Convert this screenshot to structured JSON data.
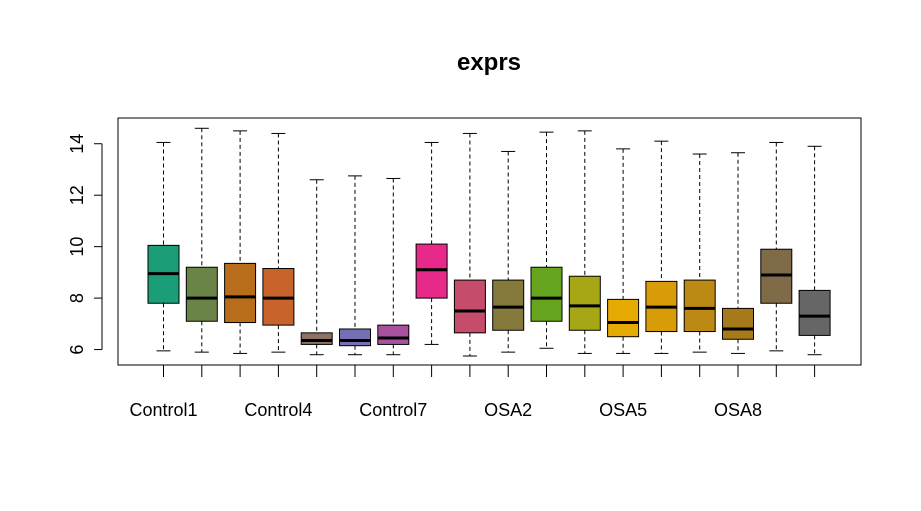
{
  "chart_data": {
    "type": "box",
    "title": "exprs",
    "xlabel": "",
    "ylabel": "",
    "ylim": [
      5.4,
      15
    ],
    "y_ticks": [
      6,
      8,
      10,
      12,
      14
    ],
    "y_tick_labels": [
      "6",
      "8",
      "10",
      "12",
      "14"
    ],
    "grid": false,
    "legend": "none",
    "category_labels": [
      {
        "index": 0,
        "label": "Control1"
      },
      {
        "index": 3,
        "label": "Control4"
      },
      {
        "index": 6,
        "label": "Control7"
      },
      {
        "index": 9,
        "label": "OSA2"
      },
      {
        "index": 12,
        "label": "OSA5"
      },
      {
        "index": 15,
        "label": "OSA8"
      }
    ],
    "boxes": [
      {
        "min": 5.95,
        "q1": 7.8,
        "median": 8.95,
        "q3": 10.05,
        "max": 14.05,
        "color": "#1b9e77"
      },
      {
        "min": 5.9,
        "q1": 7.1,
        "median": 8.0,
        "q3": 9.2,
        "max": 14.6,
        "color": "#6a8346"
      },
      {
        "min": 5.85,
        "q1": 7.05,
        "median": 8.05,
        "q3": 9.35,
        "max": 14.5,
        "color": "#b86d1a"
      },
      {
        "min": 5.9,
        "q1": 6.95,
        "median": 8.0,
        "q3": 9.15,
        "max": 14.4,
        "color": "#c7632b"
      },
      {
        "min": 5.8,
        "q1": 6.2,
        "median": 6.35,
        "q3": 6.65,
        "max": 12.6,
        "color": "#8f7161"
      },
      {
        "min": 5.8,
        "q1": 6.15,
        "median": 6.35,
        "q3": 6.8,
        "max": 12.75,
        "color": "#7570b3"
      },
      {
        "min": 5.8,
        "q1": 6.2,
        "median": 6.45,
        "q3": 6.95,
        "max": 12.65,
        "color": "#a7519f"
      },
      {
        "min": 6.2,
        "q1": 8.0,
        "median": 9.1,
        "q3": 10.1,
        "max": 14.05,
        "color": "#e7298a"
      },
      {
        "min": 5.75,
        "q1": 6.65,
        "median": 7.5,
        "q3": 8.7,
        "max": 14.4,
        "color": "#c54d6b"
      },
      {
        "min": 5.9,
        "q1": 6.75,
        "median": 7.65,
        "q3": 8.7,
        "max": 13.7,
        "color": "#857a3c"
      },
      {
        "min": 6.05,
        "q1": 7.1,
        "median": 8.0,
        "q3": 9.2,
        "max": 14.45,
        "color": "#66a61e"
      },
      {
        "min": 5.85,
        "q1": 6.75,
        "median": 7.7,
        "q3": 8.85,
        "max": 14.5,
        "color": "#a7a615"
      },
      {
        "min": 5.85,
        "q1": 6.5,
        "median": 7.05,
        "q3": 7.95,
        "max": 13.8,
        "color": "#e6ab02"
      },
      {
        "min": 5.85,
        "q1": 6.7,
        "median": 7.65,
        "q3": 8.65,
        "max": 14.1,
        "color": "#d89c08"
      },
      {
        "min": 5.9,
        "q1": 6.7,
        "median": 7.6,
        "q3": 8.7,
        "max": 13.6,
        "color": "#bc8914"
      },
      {
        "min": 5.85,
        "q1": 6.4,
        "median": 6.8,
        "q3": 7.6,
        "max": 13.65,
        "color": "#a67a1a"
      },
      {
        "min": 5.95,
        "q1": 7.8,
        "median": 8.9,
        "q3": 9.9,
        "max": 14.05,
        "color": "#7f6b48"
      },
      {
        "min": 5.8,
        "q1": 6.55,
        "median": 7.3,
        "q3": 8.3,
        "max": 13.9,
        "color": "#666666"
      }
    ]
  }
}
